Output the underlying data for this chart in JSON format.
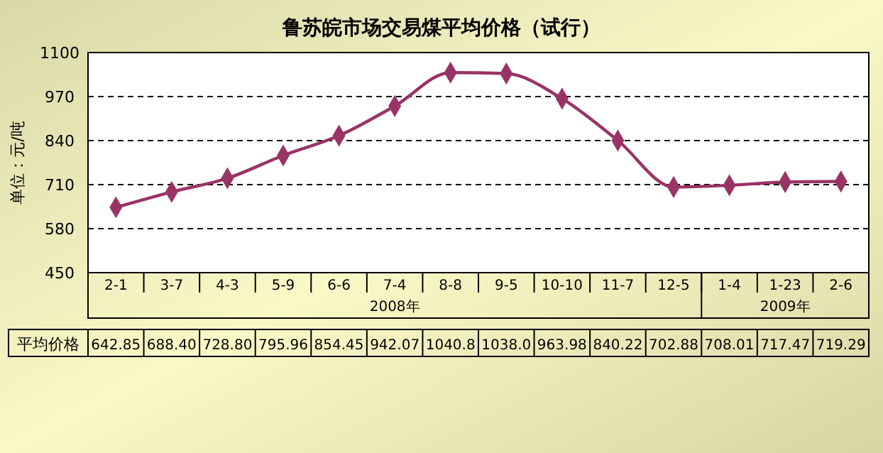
{
  "chart_data": {
    "type": "line",
    "title": "鲁苏皖市场交易煤平均价格（试行）",
    "ylabel": "单位：元/吨",
    "categories": [
      "2-1",
      "3-7",
      "4-3",
      "5-9",
      "6-6",
      "7-4",
      "8-8",
      "9-5",
      "10-10",
      "11-7",
      "12-5",
      "1-4",
      "1-23",
      "2-6"
    ],
    "series": [
      {
        "name": "平均价格",
        "color": "#993366",
        "values": [
          642.85,
          688.4,
          728.8,
          795.96,
          854.45,
          942.07,
          1040.8,
          1038.0,
          963.98,
          840.22,
          702.88,
          708.01,
          717.47,
          719.29
        ],
        "value_labels": [
          "642.85",
          "688.40",
          "728.80",
          "795.96",
          "854.45",
          "942.07",
          "1040.8",
          "1038.0",
          "963.98",
          "840.22",
          "702.88",
          "708.01",
          "717.47",
          "719.29"
        ]
      }
    ],
    "ylim": [
      450,
      1100
    ],
    "yticks": [
      450,
      580,
      710,
      840,
      970,
      1100
    ],
    "grid": "y",
    "marker": "diamond",
    "line_style": "solid",
    "annotations": [
      "2008年",
      "2009年"
    ]
  }
}
